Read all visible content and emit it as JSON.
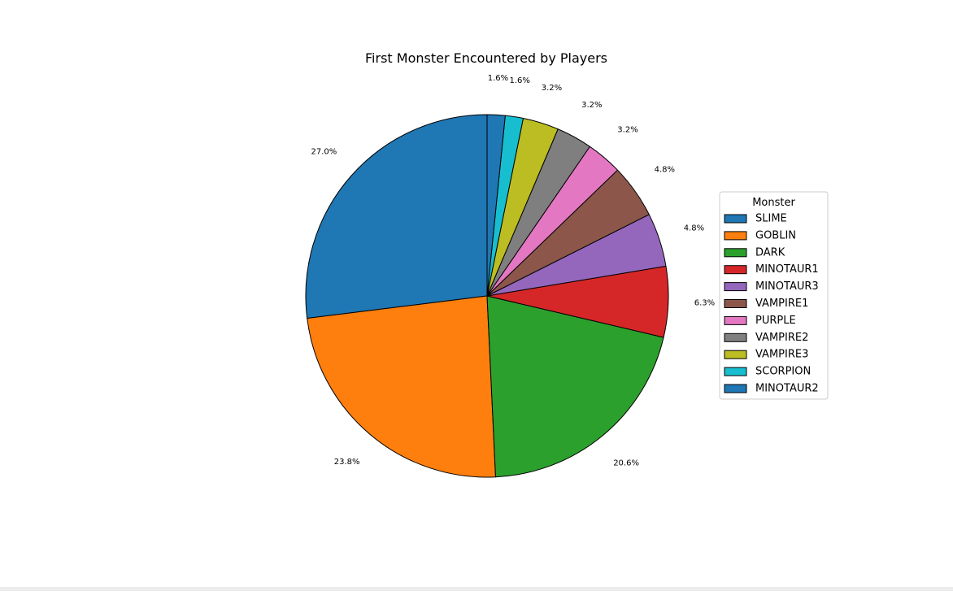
{
  "chart_data": {
    "type": "pie",
    "title": "First Monster Encountered by Players",
    "legend_title": "Monster",
    "legend_position": "right",
    "start_angle_deg": 90,
    "direction": "clockwise-from-top-reversed",
    "slices": [
      {
        "label": "SLIME",
        "value": 27.0,
        "pct_label": "27.0%",
        "color": "#1f77b4"
      },
      {
        "label": "GOBLIN",
        "value": 23.8,
        "pct_label": "23.8%",
        "color": "#ff7f0e"
      },
      {
        "label": "DARK",
        "value": 20.6,
        "pct_label": "20.6%",
        "color": "#2ca02c"
      },
      {
        "label": "MINOTAUR1",
        "value": 6.3,
        "pct_label": "6.3%",
        "color": "#d62728"
      },
      {
        "label": "MINOTAUR3",
        "value": 4.8,
        "pct_label": "4.8%",
        "color": "#9467bd"
      },
      {
        "label": "VAMPIRE1",
        "value": 4.8,
        "pct_label": "4.8%",
        "color": "#8c564b"
      },
      {
        "label": "PURPLE",
        "value": 3.2,
        "pct_label": "3.2%",
        "color": "#e377c2"
      },
      {
        "label": "VAMPIRE2",
        "value": 3.2,
        "pct_label": "3.2%",
        "color": "#7f7f7f"
      },
      {
        "label": "VAMPIRE3",
        "value": 3.2,
        "pct_label": "3.2%",
        "color": "#bcbd22"
      },
      {
        "label": "SCORPION",
        "value": 1.6,
        "pct_label": "1.6%",
        "color": "#17becf"
      },
      {
        "label": "MINOTAUR2",
        "value": 1.6,
        "pct_label": "1.6%",
        "color": "#1f77b4"
      }
    ]
  }
}
